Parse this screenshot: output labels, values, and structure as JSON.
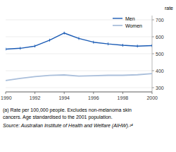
{
  "chart_data": {
    "type": "line",
    "x": [
      1990,
      1991,
      1992,
      1993,
      1994,
      1995,
      1996,
      1997,
      1998,
      1999,
      2000
    ],
    "series": [
      {
        "name": "Men",
        "color": "#1a5bb5",
        "marker": "tick",
        "values": [
          527,
          532,
          545,
          580,
          622,
          590,
          568,
          558,
          550,
          545,
          548
        ]
      },
      {
        "name": "Women",
        "color": "#aabfdb",
        "values": [
          342,
          355,
          365,
          372,
          375,
          368,
          370,
          373,
          373,
          376,
          383
        ]
      }
    ],
    "y_label": "rate",
    "xlim": [
      1990,
      2000
    ],
    "xticks": [
      1990,
      1992,
      1994,
      1996,
      1998,
      2000
    ],
    "ylim": [
      275,
      725
    ],
    "yticks": [
      300,
      400,
      500,
      600,
      700
    ],
    "grid": true,
    "legend": "upper right",
    "footnotes": [
      "(a) Rate per 100,000 people. Excludes non-melanoma skin",
      "cancers. Age standardised to the 2001 population."
    ],
    "source": "Source: Australian Institute of Health and Welfare (AIHW).²⁴"
  }
}
